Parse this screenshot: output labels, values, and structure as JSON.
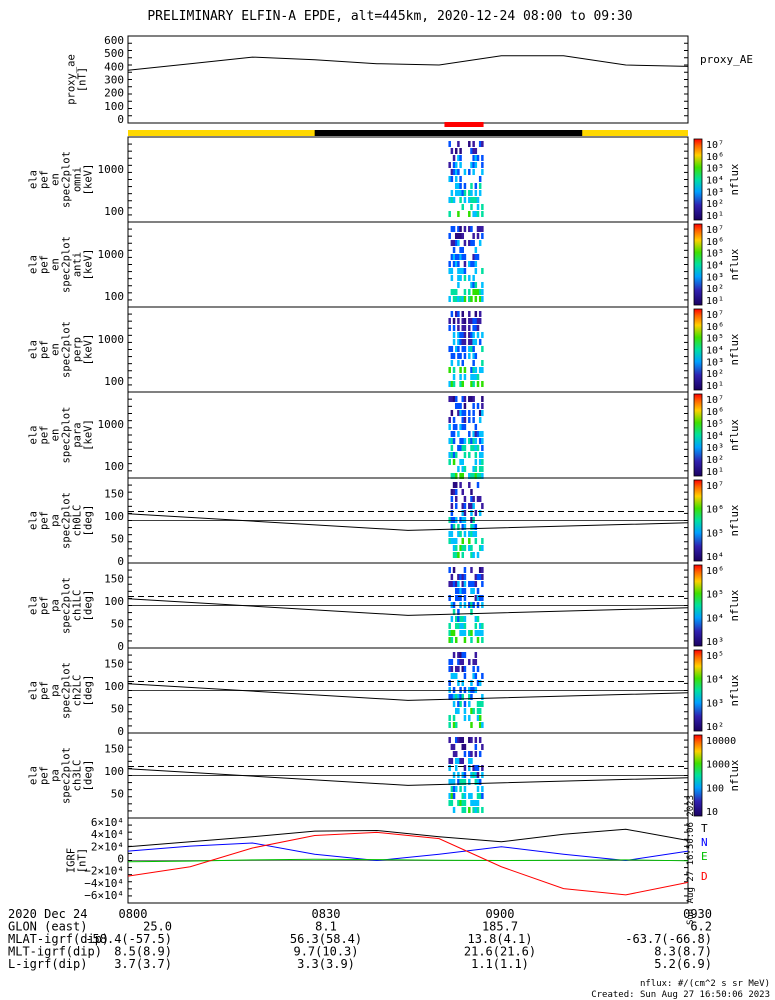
{
  "title": "PRELIMINARY ELFIN-A EPDE, alt=445km, 2020-12-24 08:00 to 09:30",
  "side_stamp": "Sun Aug 27 16:50:06 2023",
  "panels": {
    "proxy_ae": {
      "ylabel": [
        "proxy_ae",
        "[nT]"
      ],
      "yticks": [
        "600",
        "500",
        "400",
        "300",
        "200",
        "100",
        "0"
      ],
      "legend": "proxy_AE"
    },
    "spectrograms": [
      {
        "ylabel": [
          "ela",
          "pef",
          "en",
          "spec2plot",
          "omni",
          "[keV]"
        ],
        "yticks": [
          "1000",
          "100"
        ],
        "cbar": [
          "10⁷",
          "10⁶",
          "10⁵",
          "10⁴",
          "10³",
          "10²",
          "10¹"
        ],
        "cbar_label": "nflux"
      },
      {
        "ylabel": [
          "ela",
          "pef",
          "en",
          "spec2plot",
          "anti",
          "[keV]"
        ],
        "yticks": [
          "1000",
          "100"
        ],
        "cbar": [
          "10⁷",
          "10⁶",
          "10⁵",
          "10⁴",
          "10³",
          "10²",
          "10¹"
        ],
        "cbar_label": "nflux"
      },
      {
        "ylabel": [
          "ela",
          "pef",
          "en",
          "spec2plot",
          "perp",
          "[keV]"
        ],
        "yticks": [
          "1000",
          "100"
        ],
        "cbar": [
          "10⁷",
          "10⁶",
          "10⁵",
          "10⁴",
          "10³",
          "10²",
          "10¹"
        ],
        "cbar_label": "nflux"
      },
      {
        "ylabel": [
          "ela",
          "pef",
          "en",
          "spec2plot",
          "para",
          "[keV]"
        ],
        "yticks": [
          "1000",
          "100"
        ],
        "cbar": [
          "10⁷",
          "10⁶",
          "10⁵",
          "10⁴",
          "10³",
          "10²",
          "10¹"
        ],
        "cbar_label": "nflux"
      }
    ],
    "pitch_angle": [
      {
        "ylabel": [
          "ela",
          "pef",
          "pa",
          "spec2plot",
          "ch0LC",
          "[deg]"
        ],
        "yticks": [
          "150",
          "100",
          "50",
          "0"
        ],
        "cbar": [
          "10⁷",
          "10⁶",
          "10⁵",
          "10⁴"
        ],
        "cbar_label": "nflux"
      },
      {
        "ylabel": [
          "ela",
          "pef",
          "pa",
          "spec2plot",
          "ch1LC",
          "[deg]"
        ],
        "yticks": [
          "150",
          "100",
          "50",
          "0"
        ],
        "cbar": [
          "10⁶",
          "10⁵",
          "10⁴",
          "10³"
        ],
        "cbar_label": "nflux"
      },
      {
        "ylabel": [
          "ela",
          "pef",
          "pa",
          "spec2plot",
          "ch2LC",
          "[deg]"
        ],
        "yticks": [
          "150",
          "100",
          "50",
          "0"
        ],
        "cbar": [
          "10⁵",
          "10⁴",
          "10³",
          "10²"
        ],
        "cbar_label": "nflux"
      },
      {
        "ylabel": [
          "ela",
          "pef",
          "pa",
          "spec2plot",
          "ch3LC",
          "[deg]"
        ],
        "yticks": [
          "150",
          "100",
          "50"
        ],
        "cbar": [
          "10000",
          "1000",
          "100",
          "10"
        ],
        "cbar_label": "nflux"
      }
    ],
    "igrf": {
      "ylabel": [
        "IGRF",
        "[nT]"
      ],
      "yticks": [
        "6×10⁴",
        "4×10⁴",
        "2×10⁴",
        "0",
        "−2×10⁴",
        "−4×10⁴",
        "−6×10⁴"
      ],
      "legend": [
        "T",
        "N",
        "E",
        "D"
      ]
    }
  },
  "footer": {
    "rows": [
      [
        "2020 Dec 24",
        "0800",
        "0830",
        "0900",
        "0930"
      ],
      [
        "GLON (east)",
        "25.0",
        "8.1",
        "185.7",
        "6.2"
      ],
      [
        "MLAT-igrf(dip)",
        "-58.4(-57.5)",
        "56.3(58.4)",
        "13.8(4.1)",
        "-63.7(-66.8)"
      ],
      [
        "MLT-igrf(dip)",
        "8.5(8.9)",
        "9.7(10.3)",
        "21.6(21.6)",
        "8.3(8.7)"
      ],
      [
        "L-igrf(dip)",
        "3.7(3.7)",
        "3.3(3.9)",
        "1.1(1.1)",
        "5.2(6.9)"
      ]
    ],
    "unit_note": "nflux: #/(cm^2 s sr MeV)",
    "created": "Created: Sun Aug 27 16:50:06 2023"
  },
  "chart_data": {
    "type": "line",
    "title": "PRELIMINARY ELFIN-A EPDE, alt=445km, 2020-12-24 08:00 to 09:30",
    "x_range": [
      "08:00",
      "09:30"
    ],
    "colors": {
      "T": "#000000",
      "N": "#0000ff",
      "E": "#00c000",
      "D": "#ff0000",
      "bar_sun": "#ffd800",
      "bar_shadow": "#000000",
      "science": "#ff0000"
    },
    "series": [
      {
        "name": "proxy_AE",
        "x_min": [
          0,
          10,
          20,
          30,
          40,
          50,
          60,
          70,
          80,
          90
        ],
        "y": [
          370,
          420,
          470,
          450,
          420,
          410,
          480,
          480,
          410,
          400
        ]
      }
    ],
    "igrf": {
      "x_min": [
        0,
        10,
        20,
        30,
        40,
        50,
        60,
        70,
        80,
        90
      ],
      "T": [
        22000,
        30000,
        38000,
        47000,
        48000,
        38000,
        30000,
        42000,
        50000,
        32000
      ],
      "N": [
        15000,
        23000,
        28000,
        10000,
        0,
        10000,
        22000,
        10000,
        0,
        15000
      ],
      "E": [
        -2000,
        -1000,
        1000,
        2000,
        1500,
        500,
        0,
        500,
        1000,
        -500
      ],
      "D": [
        -25000,
        -10000,
        20000,
        40000,
        45000,
        35000,
        -10000,
        -45000,
        -55000,
        -35000
      ]
    },
    "science_window_min": [
      51.5,
      56.5
    ],
    "eclipse_min": [
      30,
      73
    ],
    "pitch_reference_deg": [
      110,
      90
    ]
  }
}
